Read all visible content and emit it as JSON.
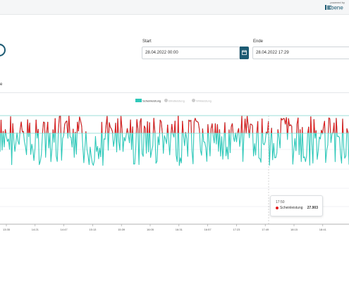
{
  "header": {
    "powered_by": "powered by",
    "brand_name": "bene",
    "logo_icon": "company-logo-icon"
  },
  "controls": {
    "start_label": "Start",
    "start_value": "28.04.2022 00:00",
    "end_label": "Ende",
    "end_value": "28.04.2022 17:29",
    "calendar_icon": "calendar-icon",
    "side_text": "e"
  },
  "colors": {
    "accent": "#1d5b73",
    "series_main": "#2ec8b9",
    "series_peak": "#e31a1c",
    "legend_inactive": "#cccccc"
  },
  "legend": [
    {
      "label": "Scheinleistung",
      "active": true
    },
    {
      "label": "Blindleistung",
      "active": false
    },
    {
      "label": "Wirkleistung",
      "active": false
    }
  ],
  "tooltip": {
    "time": "17:50",
    "series": "Scheinleistung",
    "value": "27.903"
  },
  "chart_data": {
    "type": "line",
    "title": "",
    "xlabel": "",
    "ylabel": "",
    "x_ticks": [
      "13:35",
      "14:21",
      "14:47",
      "15:13",
      "15:39",
      "16:05",
      "16:31",
      "16:57",
      "17:23",
      "17:49",
      "18:15",
      "18:41"
    ],
    "series": [
      {
        "name": "Scheinleistung",
        "color": "#2ec8b9"
      }
    ],
    "threshold_band": {
      "upper_line": true,
      "lower_line": true
    },
    "highlight_x": "17:50",
    "highlight_value": 27.903,
    "grid": true,
    "legend_position": "top-center"
  }
}
